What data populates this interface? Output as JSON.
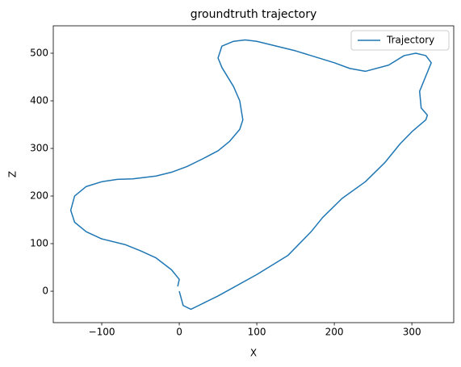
{
  "chart_data": {
    "type": "line",
    "title": "groundtruth trajectory",
    "xlabel": "X",
    "ylabel": "Z",
    "x": [
      0,
      5,
      15,
      25,
      50,
      100,
      140,
      170,
      185,
      210,
      240,
      265,
      285,
      300,
      318,
      320,
      312,
      310,
      320,
      325,
      318,
      305,
      290,
      270,
      240,
      220,
      200,
      150,
      100,
      85,
      70,
      55,
      50,
      55,
      70,
      78,
      82,
      78,
      65,
      50,
      30,
      10,
      -10,
      -30,
      -60,
      -80,
      -100,
      -120,
      -135,
      -140,
      -135,
      -120,
      -100,
      -70,
      -50,
      -30,
      -10,
      0,
      -2
    ],
    "series": [
      {
        "name": "Trajectory",
        "color": "#1f77b4",
        "values": [
          0,
          -30,
          -38,
          -30,
          -10,
          35,
          75,
          125,
          155,
          195,
          230,
          270,
          310,
          335,
          360,
          370,
          385,
          420,
          460,
          480,
          495,
          500,
          495,
          475,
          462,
          468,
          480,
          505,
          525,
          528,
          525,
          515,
          490,
          470,
          430,
          400,
          360,
          340,
          315,
          295,
          278,
          262,
          250,
          242,
          236,
          235,
          230,
          220,
          200,
          170,
          145,
          125,
          110,
          98,
          85,
          70,
          45,
          25,
          10
        ]
      }
    ],
    "xlim": [
      -162.5,
      354
    ],
    "ylim": [
      -66,
      557.6
    ],
    "xticks": [
      {
        "value": -100,
        "label": "−100"
      },
      0,
      100,
      200,
      300
    ],
    "yticks": [
      0,
      100,
      200,
      300,
      400,
      500
    ],
    "grid": false,
    "legend": "upper right"
  }
}
